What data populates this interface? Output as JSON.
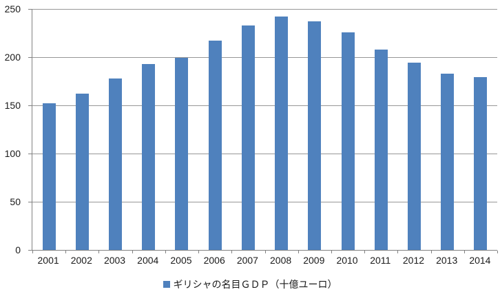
{
  "chart_data": {
    "type": "bar",
    "title": "",
    "categories": [
      "2001",
      "2002",
      "2003",
      "2004",
      "2005",
      "2006",
      "2007",
      "2008",
      "2009",
      "2010",
      "2011",
      "2012",
      "2013",
      "2014"
    ],
    "series": [
      {
        "name": "ギリシャの名目ＧＤＰ（十億ユーロ）",
        "values": [
          152,
          162,
          178,
          193,
          199,
          217,
          233,
          242,
          237,
          226,
          208,
          194,
          183,
          179
        ]
      }
    ],
    "xlabel": "",
    "ylabel": "",
    "ylim": [
      0,
      250
    ],
    "yticks": [
      0,
      50,
      100,
      150,
      200,
      250
    ],
    "grid": true,
    "legend_position": "bottom"
  },
  "colors": {
    "bar": "#4F81BD",
    "gridline": "#969696",
    "axis": "#808080",
    "text": "#1a1a1a",
    "background": "#ffffff"
  }
}
